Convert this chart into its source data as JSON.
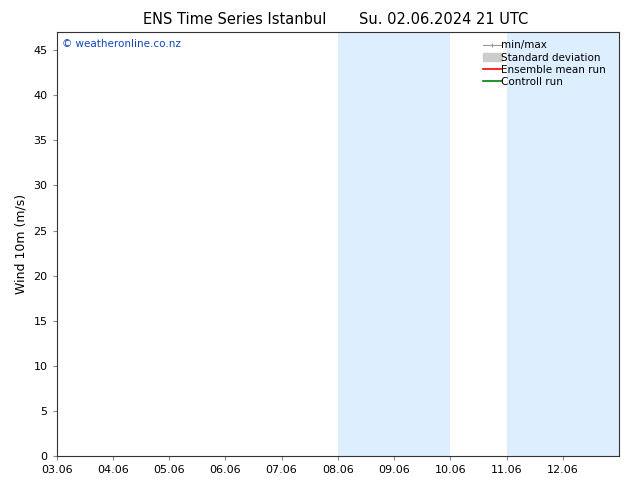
{
  "title_left": "ENS Time Series Istanbul",
  "title_right": "Su. 02.06.2024 21 UTC",
  "ylabel": "Wind 10m (m/s)",
  "xlim": [
    0,
    10
  ],
  "ylim": [
    0,
    47
  ],
  "yticks": [
    0,
    5,
    10,
    15,
    20,
    25,
    30,
    35,
    40,
    45
  ],
  "xtick_labels": [
    "03.06",
    "04.06",
    "05.06",
    "06.06",
    "07.06",
    "08.06",
    "09.06",
    "10.06",
    "11.06",
    "12.06"
  ],
  "shaded_regions": [
    [
      5,
      6
    ],
    [
      6,
      7
    ],
    [
      8,
      9
    ],
    [
      9,
      10
    ]
  ],
  "band_color": "#ddeeff",
  "watermark": "© weatheronline.co.nz",
  "bg_color": "#ffffff",
  "plot_bg_color": "#ffffff",
  "title_fontsize": 10.5,
  "tick_fontsize": 8,
  "ylabel_fontsize": 9,
  "legend_fontsize": 7.5
}
